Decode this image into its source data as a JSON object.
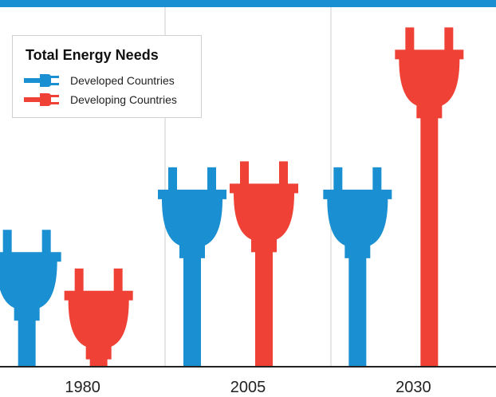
{
  "chart_data": {
    "type": "bar",
    "title": "",
    "categories": [
      "1980",
      "2005",
      "2030"
    ],
    "series": [
      {
        "name": "Developed Countries",
        "values": [
          46,
          67,
          67
        ]
      },
      {
        "name": "Developing Countries",
        "values": [
          33,
          69,
          114
        ]
      }
    ],
    "ylim": [
      0,
      120
    ],
    "grid": false,
    "legend": {
      "title": "Total Energy Needs",
      "placement": "top-left"
    },
    "colors": {
      "Developed Countries": "#1a8fd1",
      "Developing Countries": "#ef4135",
      "top_band": "#1a8fd1",
      "dividers": "#cccccc",
      "baseline": "#222222"
    }
  }
}
